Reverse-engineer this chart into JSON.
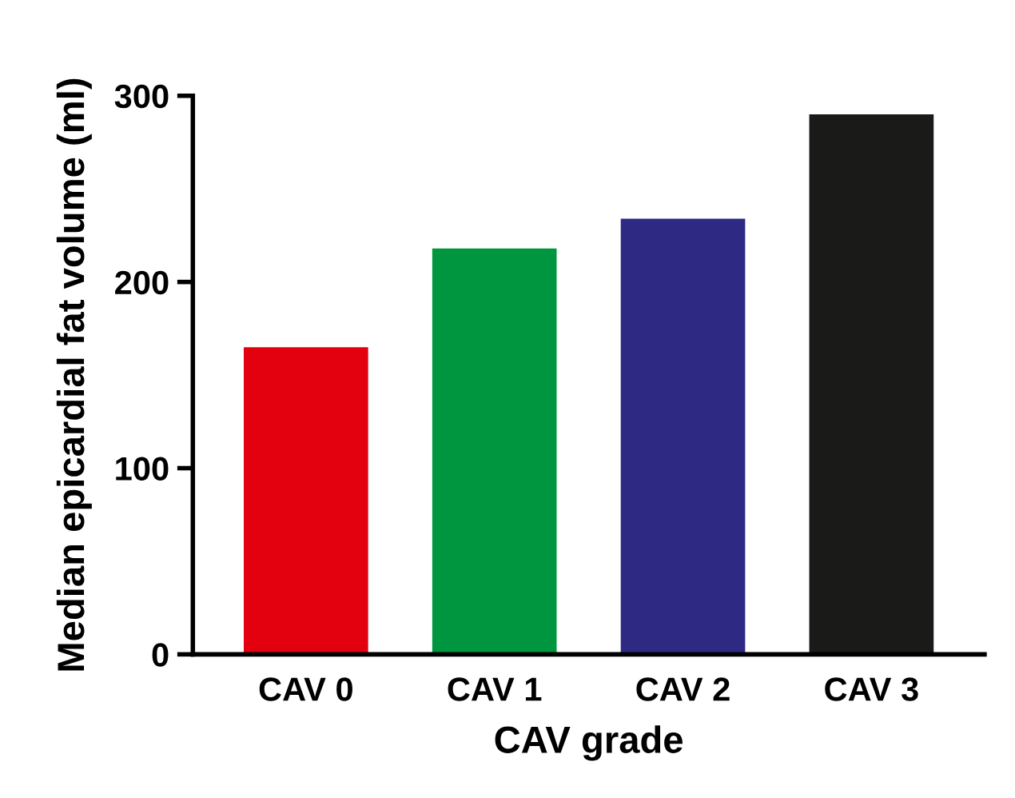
{
  "chart_data": {
    "type": "bar",
    "xlabel": "CAV grade",
    "ylabel": "Median epicardial fat volume (ml)",
    "categories": [
      "CAV 0",
      "CAV 1",
      "CAV 2",
      "CAV 3"
    ],
    "values": [
      165,
      218,
      234,
      290
    ],
    "colors": [
      "#e3000f",
      "#009640",
      "#2e2a84",
      "#1a1a18"
    ],
    "ylim": [
      0,
      300
    ],
    "yticks": [
      0,
      100,
      200,
      300
    ],
    "grid": false,
    "legend": false
  }
}
